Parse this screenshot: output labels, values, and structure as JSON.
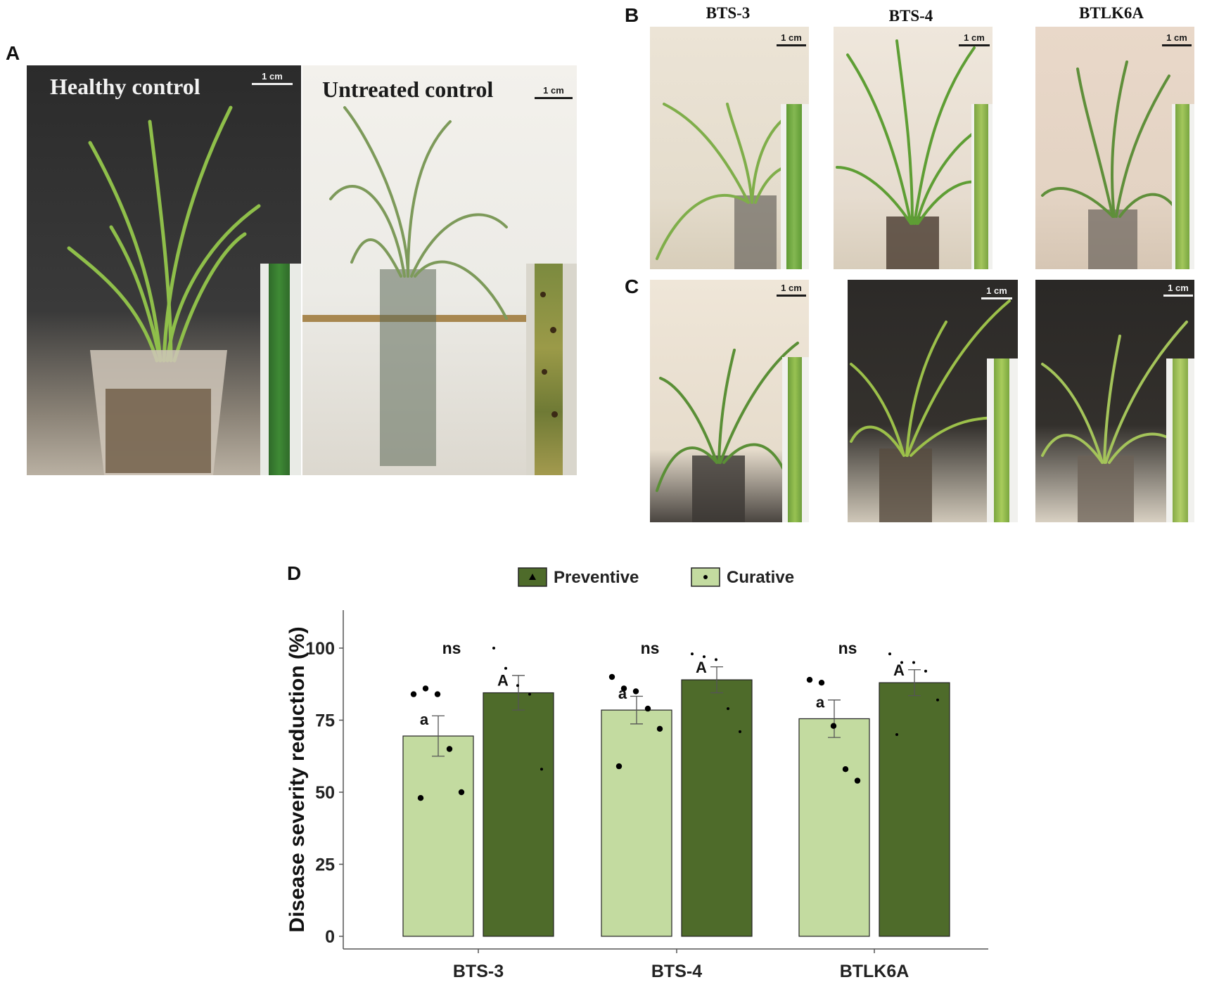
{
  "panels": {
    "A": "A",
    "B": "B",
    "C": "C",
    "D": "D"
  },
  "panel_a": {
    "healthy_label": "Healthy control",
    "untreated_label": "Untreated control",
    "scale_label": "1 cm"
  },
  "panel_b": {
    "columns": [
      "BTS-3",
      "BTS-4",
      "BTLK6A"
    ],
    "scale_label": "1 cm"
  },
  "panel_c": {
    "scale_label": "1 cm"
  },
  "colors": {
    "preventive": "#4e6b2a",
    "curative": "#c3dba0",
    "axis": "#555555"
  },
  "chart_data": {
    "type": "bar",
    "categories": [
      "BTS-3",
      "BTS-4",
      "BTLK6A"
    ],
    "ylabel": "Disease severity reduction (%)",
    "xlabel": "",
    "ylim": [
      0,
      105
    ],
    "yticks": [
      0,
      25,
      50,
      75,
      100
    ],
    "grid": false,
    "legend_position": "top",
    "series": [
      {
        "name": "Curative",
        "marker": "circle",
        "color": "#c3dba0",
        "values": [
          69.5,
          78.5,
          75.5
        ],
        "errors": [
          7.0,
          4.8,
          6.5
        ],
        "letters": [
          "a",
          "a",
          "a"
        ],
        "points": [
          [
            84,
            86,
            84,
            65,
            50,
            48
          ],
          [
            90,
            86,
            85,
            79,
            72,
            59
          ],
          [
            89,
            88,
            73,
            58,
            54
          ]
        ]
      },
      {
        "name": "Preventive",
        "marker": "triangle",
        "color": "#4e6b2a",
        "values": [
          84.5,
          89.0,
          88.0
        ],
        "errors": [
          6.0,
          4.5,
          4.5
        ],
        "letters": [
          "A",
          "A",
          "A"
        ],
        "points": [
          [
            100,
            93,
            87,
            84,
            58
          ],
          [
            98,
            97,
            96,
            79,
            71
          ],
          [
            98,
            95,
            95,
            92,
            82,
            70
          ]
        ]
      }
    ],
    "significance": [
      "ns",
      "ns",
      "ns"
    ]
  }
}
